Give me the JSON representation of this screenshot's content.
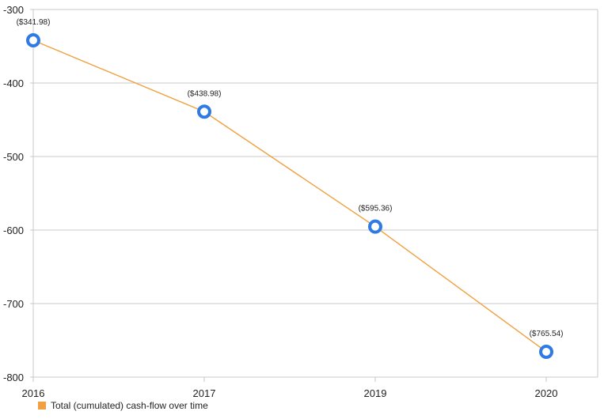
{
  "chart_data": {
    "type": "line",
    "categories": [
      "2016",
      "2017",
      "2019",
      "2020"
    ],
    "series": [
      {
        "name": "Total (cumulated) cash-flow over time",
        "values": [
          -341.98,
          -438.98,
          -595.36,
          -765.54
        ],
        "labels": [
          "($341.98)",
          "($438.98)",
          "($595.36)",
          "($765.54)"
        ],
        "color": "#f0a040"
      }
    ],
    "yticks": [
      "-300",
      "-400",
      "-500",
      "-600",
      "-700",
      "-800"
    ],
    "ytick_values": [
      -300,
      -400,
      -500,
      -600,
      -700,
      -800
    ],
    "ylim": [
      -800,
      -300
    ],
    "grid": true,
    "legend_position": "bottom-left",
    "marker_color": "#2f7ae5",
    "gridline_color": "#c8c8c8"
  }
}
